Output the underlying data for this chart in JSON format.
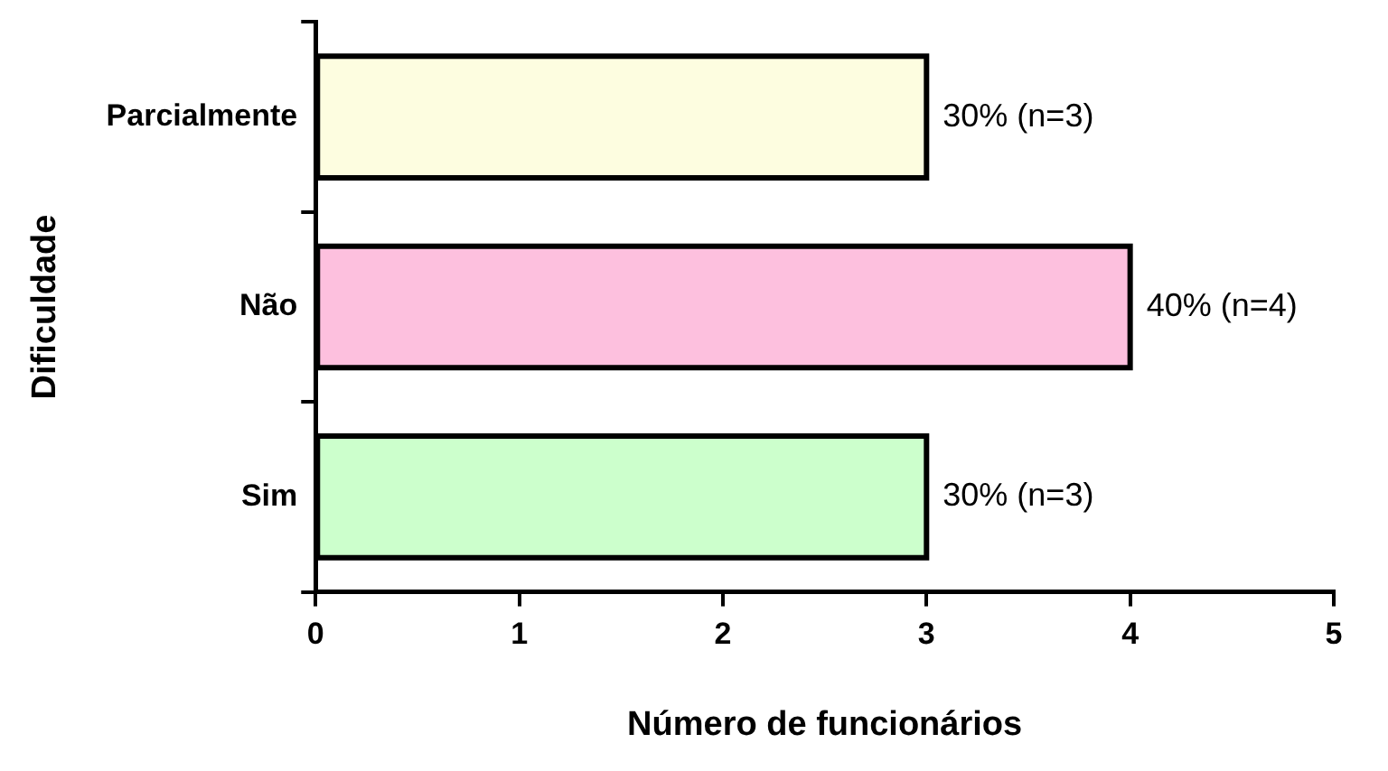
{
  "chart_data": {
    "type": "bar",
    "orientation": "horizontal",
    "categories": [
      "Parcialmente",
      "Não",
      "Sim"
    ],
    "values": [
      3,
      4,
      3
    ],
    "colors": [
      "#fdfde0",
      "#fdc0de",
      "#ccffcc"
    ],
    "value_labels": [
      "30% (n=3)",
      "40% (n=4)",
      "30% (n=3)"
    ],
    "xlabel": "Número de funcionários",
    "ylabel": "Dificuldade",
    "xlim": [
      0,
      5
    ],
    "xticks": [
      0,
      1,
      2,
      3,
      4,
      5
    ],
    "grid": false,
    "legend": false
  }
}
